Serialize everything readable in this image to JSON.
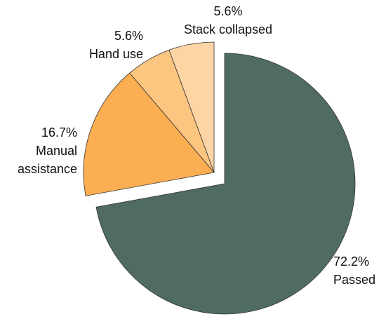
{
  "chart_data": {
    "type": "pie",
    "categories": [
      "Passed",
      "Manual assistance",
      "Hand use",
      "Stack collapsed"
    ],
    "values": [
      72.2,
      16.7,
      5.6,
      5.6
    ],
    "value_labels": [
      "72.2%",
      "16.7%",
      "5.6%",
      "5.6%"
    ],
    "colors": [
      "#4f6b63",
      "#fbae52",
      "#fcc580",
      "#fdd5a5"
    ]
  }
}
